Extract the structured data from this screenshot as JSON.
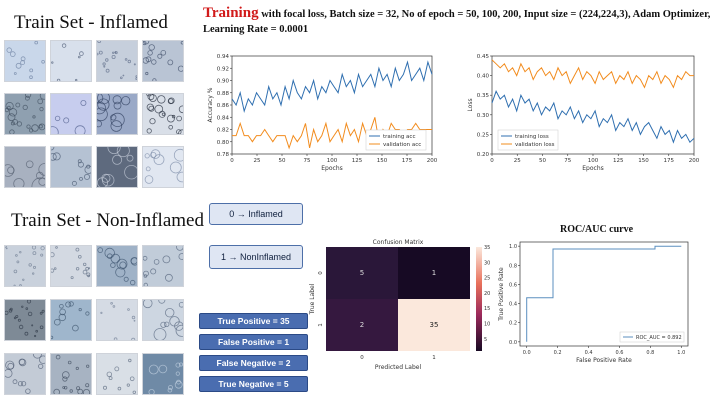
{
  "titles": {
    "inflamed": "Train Set  - Inflamed",
    "non_inflamed": "Train Set  - Non-Inflamed"
  },
  "header": {
    "red_word": "Training",
    "details": "with focal loss, Batch size = 32, No of epoch = 50, 100, 200, Input size = (224,224,3),  Adam Optimizer, Learning Rate = 0.0001"
  },
  "class_labels": [
    {
      "index": "0",
      "arrow": "→",
      "name": "Inflamed"
    },
    {
      "index": "1",
      "arrow": "→",
      "name": "NonInflamed"
    }
  ],
  "class_label_texts": [
    "0 → Inflamed",
    "1 → NonInflamed"
  ],
  "stats": [
    "True Positive = 35",
    "False Positive = 1",
    "False Negative = 2",
    "True Negative = 5"
  ],
  "roc_title": "ROC/AUC curve",
  "colors": {
    "accent_red": "#d11a1a",
    "stat_fill": "#4a6db0",
    "train_line": "#2f6fb0",
    "val_line": "#f28c1e"
  },
  "chart_data": [
    {
      "type": "line",
      "ylabel": "Accuracy %",
      "xlabel": "Epochs",
      "xlim": [
        0,
        200
      ],
      "ylim": [
        0.78,
        0.94
      ],
      "x_ticks": [
        "0",
        "25",
        "50",
        "75",
        "100",
        "125",
        "150",
        "175",
        "200"
      ],
      "y_ticks": [
        "0.78",
        "0.80",
        "0.82",
        "0.84",
        "0.86",
        "0.88",
        "0.90",
        "0.92",
        "0.94"
      ],
      "legend_position": "lower-right",
      "series": [
        {
          "name": "training acc",
          "color": "#2f6fb0",
          "values": [
            0.87,
            0.86,
            0.88,
            0.85,
            0.87,
            0.86,
            0.88,
            0.87,
            0.86,
            0.89,
            0.87,
            0.88,
            0.86,
            0.89,
            0.87,
            0.9,
            0.88,
            0.87,
            0.89,
            0.88,
            0.9,
            0.87,
            0.89,
            0.88,
            0.9,
            0.89,
            0.88,
            0.91,
            0.89,
            0.9,
            0.88,
            0.91,
            0.89,
            0.9,
            0.91,
            0.89,
            0.92,
            0.9,
            0.91,
            0.89,
            0.92,
            0.9,
            0.91,
            0.93,
            0.9,
            0.91,
            0.92,
            0.9,
            0.93,
            0.91
          ]
        },
        {
          "name": "validation acc",
          "color": "#f28c1e",
          "values": [
            0.81,
            0.81,
            0.83,
            0.81,
            0.81,
            0.8,
            0.81,
            0.81,
            0.82,
            0.81,
            0.8,
            0.81,
            0.81,
            0.81,
            0.79,
            0.81,
            0.8,
            0.81,
            0.83,
            0.79,
            0.82,
            0.8,
            0.81,
            0.83,
            0.8,
            0.81,
            0.82,
            0.8,
            0.83,
            0.81,
            0.82,
            0.8,
            0.83,
            0.81,
            0.82,
            0.84,
            0.8,
            0.82,
            0.81,
            0.83,
            0.82,
            0.82,
            0.81,
            0.82,
            0.82,
            0.83,
            0.82,
            0.82,
            0.82,
            0.82
          ]
        }
      ]
    },
    {
      "type": "line",
      "ylabel": "Loss",
      "xlabel": "Epochs",
      "xlim": [
        0,
        200
      ],
      "ylim": [
        0.2,
        0.45
      ],
      "x_ticks": [
        "0",
        "25",
        "50",
        "75",
        "100",
        "125",
        "150",
        "175",
        "200"
      ],
      "y_ticks": [
        "0.20",
        "0.25",
        "0.30",
        "0.35",
        "0.40",
        "0.45"
      ],
      "legend_position": "lower-left",
      "series": [
        {
          "name": "training loss",
          "color": "#2f6fb0",
          "values": [
            0.33,
            0.36,
            0.34,
            0.35,
            0.32,
            0.34,
            0.31,
            0.35,
            0.33,
            0.34,
            0.31,
            0.33,
            0.3,
            0.32,
            0.31,
            0.33,
            0.29,
            0.31,
            0.3,
            0.32,
            0.29,
            0.31,
            0.28,
            0.3,
            0.29,
            0.31,
            0.27,
            0.29,
            0.28,
            0.3,
            0.26,
            0.28,
            0.27,
            0.29,
            0.26,
            0.28,
            0.25,
            0.27,
            0.28,
            0.26,
            0.24,
            0.27,
            0.25,
            0.26,
            0.23,
            0.26,
            0.24,
            0.25,
            0.23,
            0.24
          ]
        },
        {
          "name": "validation loss",
          "color": "#f28c1e",
          "values": [
            0.44,
            0.43,
            0.42,
            0.43,
            0.41,
            0.42,
            0.4,
            0.43,
            0.41,
            0.42,
            0.39,
            0.41,
            0.42,
            0.4,
            0.41,
            0.39,
            0.42,
            0.4,
            0.41,
            0.38,
            0.4,
            0.42,
            0.39,
            0.41,
            0.4,
            0.38,
            0.41,
            0.39,
            0.4,
            0.41,
            0.38,
            0.4,
            0.39,
            0.41,
            0.38,
            0.4,
            0.39,
            0.37,
            0.4,
            0.39,
            0.41,
            0.38,
            0.4,
            0.39,
            0.37,
            0.4,
            0.39,
            0.41,
            0.4,
            0.4
          ]
        }
      ]
    },
    {
      "type": "heatmap",
      "title": "Confusion Matrix",
      "xlabel": "Predicted Label",
      "ylabel": "True Label",
      "x_categories": [
        "0",
        "1"
      ],
      "y_categories": [
        "0",
        "1"
      ],
      "values": [
        [
          5,
          1
        ],
        [
          2,
          35
        ]
      ],
      "colorbar_ticks": [
        "35",
        "30",
        "25",
        "20",
        "15",
        "10",
        "5"
      ],
      "colorbar_range": [
        1,
        35
      ]
    },
    {
      "type": "line",
      "xlabel": "False Positive Rate",
      "ylabel": "True Positive Rate",
      "xlim": [
        0,
        1
      ],
      "ylim": [
        0,
        1
      ],
      "x_ticks": [
        "0.0",
        "0.2",
        "0.4",
        "0.6",
        "0.8",
        "1.0"
      ],
      "y_ticks": [
        "0.0",
        "0.2",
        "0.4",
        "0.6",
        "0.8",
        "1.0"
      ],
      "legend_position": "lower-right",
      "series": [
        {
          "name": "ROC_AUC = 0.892",
          "color": "#5b8fbf",
          "x": [
            0.0,
            0.0,
            0.17,
            0.17,
            0.83,
            0.83,
            1.0
          ],
          "y": [
            0.0,
            0.46,
            0.46,
            0.97,
            0.97,
            1.0,
            1.0
          ]
        }
      ]
    }
  ]
}
